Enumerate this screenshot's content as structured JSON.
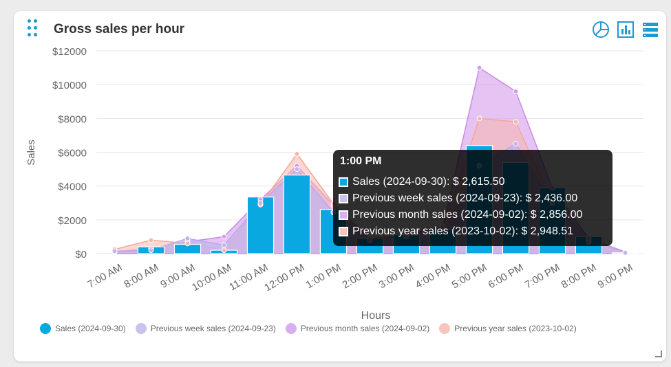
{
  "title": "Gross sales per hour",
  "icons": [
    "pie-chart-icon",
    "bar-chart-icon",
    "list-icon"
  ],
  "colors": {
    "sales": "#0aa8e0",
    "prev_week": "#c9c3f0",
    "prev_month": "#d9b0ef",
    "prev_year": "#f8c5bd",
    "accent": "#1a9ad6"
  },
  "chart_data": {
    "type": "bar",
    "title": "Gross sales per hour",
    "xlabel": "Hours",
    "ylabel": "Sales",
    "ylim": [
      0,
      12000
    ],
    "yticks": [
      "$0",
      "$2000",
      "$4000",
      "$6000",
      "$8000",
      "$10000",
      "$12000"
    ],
    "categories": [
      "7:00 AM",
      "8:00 AM",
      "9:00 AM",
      "10:00 AM",
      "11:00 AM",
      "12:00 PM",
      "1:00 PM",
      "2:00 PM",
      "3:00 PM",
      "4:00 PM",
      "5:00 PM",
      "6:00 PM",
      "7:00 PM",
      "8:00 PM",
      "9:00 PM"
    ],
    "series": [
      {
        "name": "Sales (2024-09-30)",
        "type": "bar",
        "values": [
          0,
          400,
          550,
          200,
          3350,
          4650,
          2615.5,
          900,
          1100,
          1400,
          6400,
          5400,
          3900,
          1000,
          50
        ]
      },
      {
        "name": "Previous week sales (2024-09-23)",
        "type": "area",
        "values": [
          150,
          200,
          900,
          500,
          3000,
          5000,
          2436.0,
          800,
          1000,
          1300,
          5200,
          6500,
          3000,
          900,
          50
        ]
      },
      {
        "name": "Previous month sales (2024-09-02)",
        "type": "area",
        "values": [
          100,
          300,
          700,
          1000,
          3200,
          5200,
          2856.0,
          900,
          1100,
          1600,
          11000,
          9600,
          3900,
          900,
          100
        ]
      },
      {
        "name": "Previous year sales (2023-10-02)",
        "type": "area",
        "values": [
          250,
          800,
          600,
          200,
          2900,
          5900,
          2948.51,
          900,
          1100,
          1500,
          8000,
          7800,
          3000,
          700,
          60
        ]
      }
    ],
    "grid": true,
    "legend": "bottom"
  },
  "tooltip": {
    "title": "1:00 PM",
    "rows": [
      "Sales (2024-09-30): $ 2,615.50",
      "Previous week sales (2024-09-23): $ 2,436.00",
      "Previous month sales (2024-09-02): $ 2,856.00",
      "Previous year sales (2023-10-02): $ 2,948.51"
    ]
  }
}
